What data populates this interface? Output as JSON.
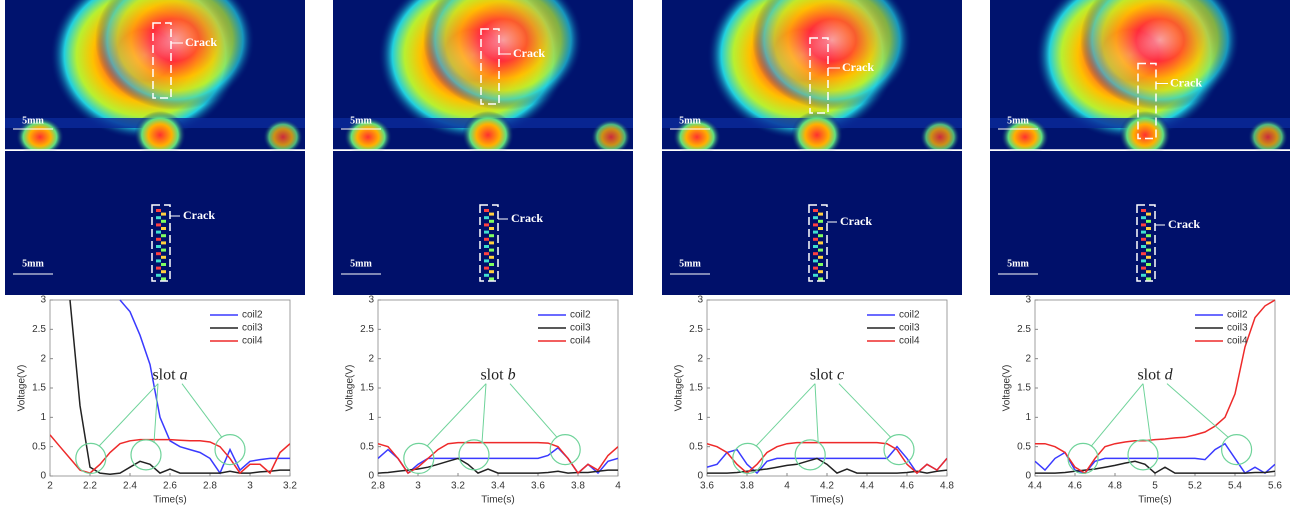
{
  "chart_data": [
    {
      "type": "line",
      "x_label": "Time(s)",
      "y_label": "Voltage(V)",
      "annotation": {
        "text": "slot",
        "letter": "a"
      },
      "x": [
        2.0,
        2.05,
        2.1,
        2.15,
        2.2,
        2.25,
        2.3,
        2.35,
        2.4,
        2.45,
        2.5,
        2.55,
        2.6,
        2.65,
        2.7,
        2.75,
        2.8,
        2.85,
        2.9,
        2.95,
        3.0,
        3.05,
        3.1,
        3.15,
        3.2
      ],
      "xlim": [
        2,
        3.2
      ],
      "xticks": [
        2,
        2.2,
        2.4,
        2.6,
        2.8,
        3,
        3.2
      ],
      "ylim": [
        0,
        3
      ],
      "yticks": [
        0,
        0.5,
        1,
        1.5,
        2,
        2.5,
        3
      ],
      "series": [
        {
          "name": "coil2",
          "color": "#3a3aff",
          "values": [
            null,
            null,
            null,
            null,
            null,
            null,
            null,
            3.0,
            2.8,
            2.4,
            1.9,
            1.0,
            0.6,
            0.5,
            0.45,
            0.4,
            0.3,
            0.05,
            0.45,
            0.1,
            0.25,
            0.28,
            0.3,
            0.3,
            0.3
          ]
        },
        {
          "name": "coil3",
          "color": "#222222",
          "values": [
            null,
            null,
            3.0,
            1.2,
            0.15,
            0.05,
            0.03,
            0.05,
            0.15,
            0.25,
            0.2,
            0.05,
            0.12,
            0.05,
            0.05,
            0.05,
            0.05,
            0.05,
            0.08,
            0.05,
            0.05,
            0.07,
            0.08,
            0.1,
            0.1
          ]
        },
        {
          "name": "coil4",
          "color": "#ee2a2a",
          "values": [
            0.7,
            0.5,
            0.3,
            0.1,
            0.05,
            0.2,
            0.4,
            0.55,
            0.6,
            0.62,
            0.62,
            0.62,
            0.62,
            0.61,
            0.6,
            0.6,
            0.58,
            0.5,
            0.3,
            0.05,
            0.2,
            0.2,
            0.05,
            0.4,
            0.55
          ]
        }
      ]
    },
    {
      "type": "line",
      "x_label": "Time(s)",
      "y_label": "Voltage(V)",
      "annotation": {
        "text": "slot",
        "letter": "b"
      },
      "x": [
        2.8,
        2.85,
        2.9,
        2.95,
        3.0,
        3.05,
        3.1,
        3.15,
        3.2,
        3.25,
        3.3,
        3.35,
        3.4,
        3.45,
        3.5,
        3.55,
        3.6,
        3.65,
        3.7,
        3.75,
        3.8,
        3.85,
        3.9,
        3.95,
        4.0
      ],
      "xlim": [
        2.8,
        4
      ],
      "xticks": [
        2.8,
        3,
        3.2,
        3.4,
        3.6,
        3.8,
        4
      ],
      "ylim": [
        0,
        3
      ],
      "yticks": [
        0,
        0.5,
        1,
        1.5,
        2,
        2.5,
        3
      ],
      "series": [
        {
          "name": "coil2",
          "color": "#3a3aff",
          "values": [
            0.3,
            0.45,
            0.3,
            0.05,
            0.2,
            0.3,
            0.3,
            0.3,
            0.3,
            0.3,
            0.3,
            0.3,
            0.3,
            0.3,
            0.3,
            0.3,
            0.3,
            0.35,
            0.48,
            0.3,
            0.05,
            0.2,
            0.05,
            0.25,
            0.3
          ]
        },
        {
          "name": "coil3",
          "color": "#222222",
          "values": [
            0.05,
            0.06,
            0.08,
            0.1,
            0.12,
            0.15,
            0.2,
            0.25,
            0.3,
            0.2,
            0.05,
            0.12,
            0.05,
            0.05,
            0.05,
            0.05,
            0.05,
            0.06,
            0.08,
            0.05,
            0.06,
            0.06,
            0.08,
            0.1,
            0.1
          ]
        },
        {
          "name": "coil4",
          "color": "#ee2a2a",
          "values": [
            0.55,
            0.5,
            0.3,
            0.05,
            0.15,
            0.3,
            0.45,
            0.55,
            0.57,
            0.57,
            0.57,
            0.57,
            0.57,
            0.57,
            0.57,
            0.57,
            0.57,
            0.56,
            0.5,
            0.3,
            0.05,
            0.2,
            0.1,
            0.35,
            0.5
          ]
        }
      ]
    },
    {
      "type": "line",
      "x_label": "Time(s)",
      "y_label": "Voltage(V)",
      "annotation": {
        "text": "slot",
        "letter": "c"
      },
      "x": [
        3.6,
        3.65,
        3.7,
        3.75,
        3.8,
        3.85,
        3.9,
        3.95,
        4.0,
        4.05,
        4.1,
        4.15,
        4.2,
        4.25,
        4.3,
        4.35,
        4.4,
        4.45,
        4.5,
        4.55,
        4.6,
        4.65,
        4.7,
        4.75,
        4.8
      ],
      "xlim": [
        3.6,
        4.8
      ],
      "xticks": [
        3.6,
        3.8,
        4,
        4.2,
        4.4,
        4.6,
        4.8
      ],
      "ylim": [
        0,
        3
      ],
      "yticks": [
        0,
        0.5,
        1,
        1.5,
        2,
        2.5,
        3
      ],
      "series": [
        {
          "name": "coil2",
          "color": "#3a3aff",
          "values": [
            0.15,
            0.2,
            0.4,
            0.45,
            0.2,
            0.05,
            0.25,
            0.3,
            0.3,
            0.3,
            0.3,
            0.3,
            0.3,
            0.3,
            0.3,
            0.3,
            0.3,
            0.3,
            0.3,
            0.5,
            0.3,
            0.05,
            0.2,
            0.1,
            0.3
          ]
        },
        {
          "name": "coil3",
          "color": "#222222",
          "values": [
            0.05,
            0.05,
            0.05,
            0.06,
            0.08,
            0.1,
            0.12,
            0.15,
            0.18,
            0.2,
            0.25,
            0.3,
            0.2,
            0.05,
            0.12,
            0.05,
            0.05,
            0.05,
            0.05,
            0.05,
            0.06,
            0.08,
            0.05,
            0.08,
            0.1
          ]
        },
        {
          "name": "coil4",
          "color": "#ee2a2a",
          "values": [
            0.55,
            0.5,
            0.4,
            0.2,
            0.05,
            0.2,
            0.4,
            0.5,
            0.55,
            0.57,
            0.57,
            0.57,
            0.57,
            0.57,
            0.57,
            0.57,
            0.57,
            0.57,
            0.55,
            0.45,
            0.2,
            0.05,
            0.2,
            0.1,
            0.3
          ]
        }
      ]
    },
    {
      "type": "line",
      "x_label": "Time(s)",
      "y_label": "Voltage(V)",
      "annotation": {
        "text": "slot",
        "letter": "d"
      },
      "x": [
        4.4,
        4.45,
        4.5,
        4.55,
        4.6,
        4.65,
        4.7,
        4.75,
        4.8,
        4.85,
        4.9,
        4.95,
        5.0,
        5.05,
        5.1,
        5.15,
        5.2,
        5.25,
        5.3,
        5.35,
        5.4,
        5.45,
        5.5,
        5.55,
        5.6
      ],
      "xlim": [
        4.4,
        5.6
      ],
      "xticks": [
        4.4,
        4.6,
        4.8,
        5,
        5.2,
        5.4,
        5.6
      ],
      "ylim": [
        0,
        3
      ],
      "yticks": [
        0,
        0.5,
        1,
        1.5,
        2,
        2.5,
        3
      ],
      "series": [
        {
          "name": "coil2",
          "color": "#3a3aff",
          "values": [
            0.25,
            0.1,
            0.3,
            0.4,
            0.1,
            0.05,
            0.25,
            0.3,
            0.3,
            0.3,
            0.3,
            0.3,
            0.3,
            0.3,
            0.3,
            0.3,
            0.3,
            0.28,
            0.45,
            0.55,
            0.3,
            0.05,
            0.15,
            0.05,
            0.2
          ]
        },
        {
          "name": "coil3",
          "color": "#222222",
          "values": [
            0.05,
            0.05,
            0.05,
            0.06,
            0.08,
            0.1,
            0.12,
            0.15,
            0.18,
            0.22,
            0.25,
            0.2,
            0.05,
            0.15,
            0.05,
            0.05,
            0.05,
            0.05,
            0.05,
            0.05,
            0.05,
            0.05,
            0.06,
            0.06,
            0.08
          ]
        },
        {
          "name": "coil4",
          "color": "#ee2a2a",
          "values": [
            0.55,
            0.55,
            0.5,
            0.4,
            0.15,
            0.05,
            0.3,
            0.5,
            0.55,
            0.58,
            0.6,
            0.6,
            0.62,
            0.63,
            0.65,
            0.66,
            0.7,
            0.75,
            0.85,
            1.0,
            1.4,
            2.2,
            2.7,
            2.9,
            3.0
          ]
        }
      ]
    }
  ],
  "images": [
    {
      "top": {
        "crack_label": "Crack",
        "scale_label": "5mm"
      },
      "bottom": {
        "crack_label": "Crack",
        "scale_label": "5mm"
      }
    },
    {
      "top": {
        "crack_label": "Crack",
        "scale_label": "5mm"
      },
      "bottom": {
        "crack_label": "Crack",
        "scale_label": "5mm"
      }
    },
    {
      "top": {
        "crack_label": "Crack",
        "scale_label": "5mm"
      },
      "bottom": {
        "crack_label": "Crack",
        "scale_label": "5mm"
      }
    },
    {
      "top": {
        "crack_label": "Crack",
        "scale_label": "5mm"
      },
      "bottom": {
        "crack_label": "Crack",
        "scale_label": "5mm"
      }
    }
  ]
}
